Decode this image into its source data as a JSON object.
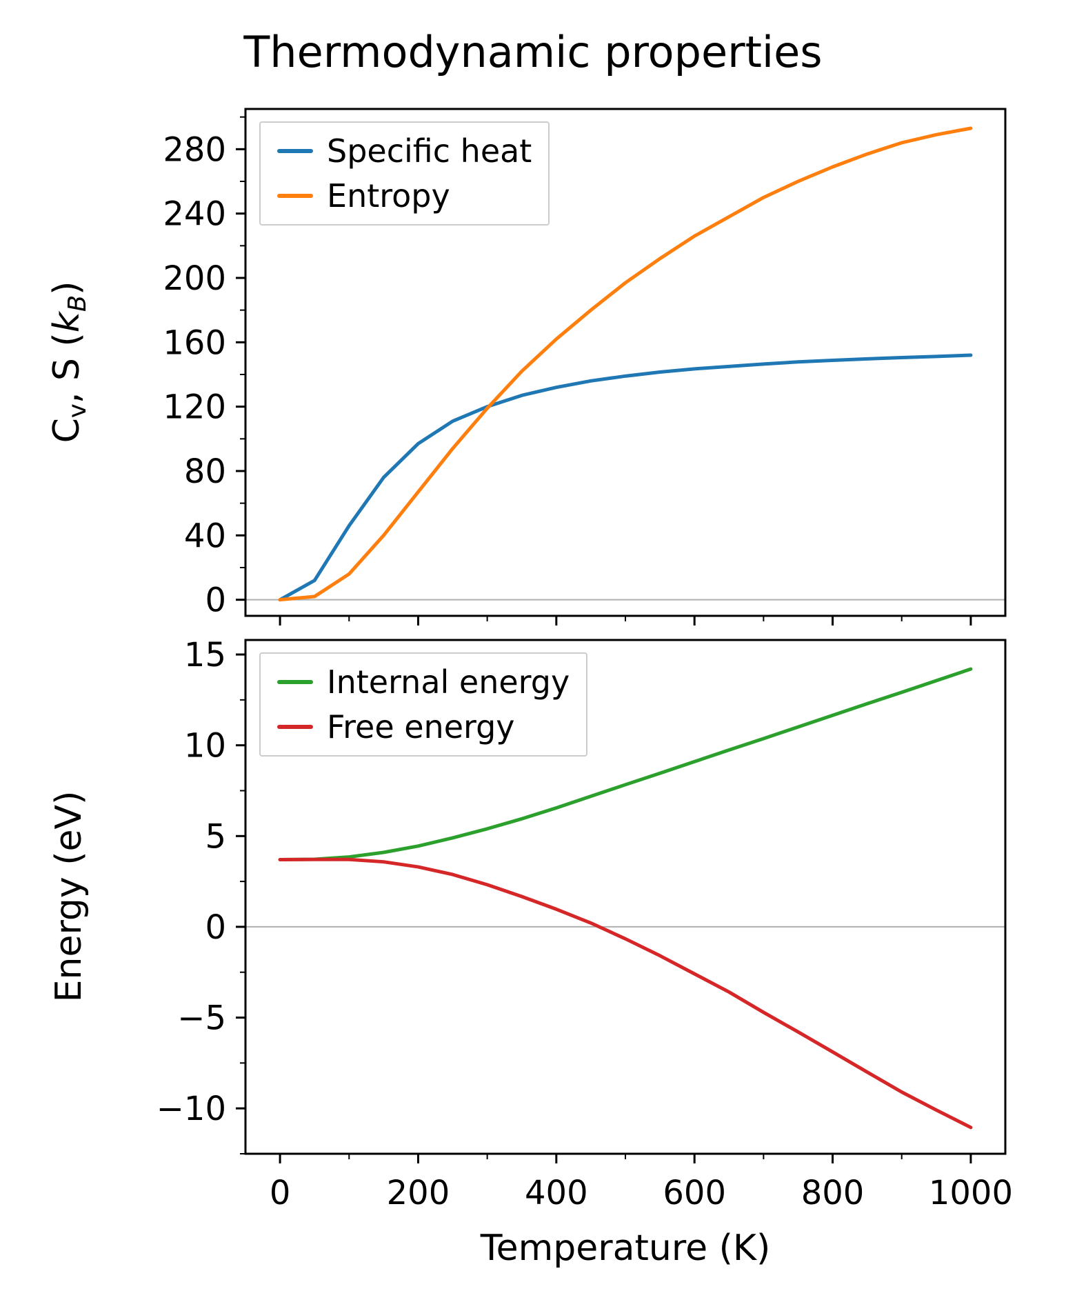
{
  "figure": {
    "title": "Thermodynamic properties",
    "xlabel": "Temperature (K)"
  },
  "colors": {
    "specific_heat": "#1f77b4",
    "entropy": "#ff7f0e",
    "internal_energy": "#2ca02c",
    "free_energy": "#d62728",
    "zero_line": "#b0b0b0",
    "spine": "#000000"
  },
  "top_ylabel_segments": [
    {
      "t": "C"
    },
    {
      "t": "v",
      "sub": true
    },
    {
      "t": ", S ("
    },
    {
      "t": "k",
      "italic": true
    },
    {
      "t": "B",
      "sub": true,
      "italic": true
    },
    {
      "t": ")"
    }
  ],
  "chart_data": [
    {
      "type": "line",
      "title": "Thermodynamic properties",
      "xlabel": "Temperature (K)",
      "ylabel": "Cv, S (kB)",
      "x": [
        0,
        50,
        100,
        150,
        200,
        250,
        300,
        350,
        400,
        450,
        500,
        550,
        600,
        650,
        700,
        750,
        800,
        850,
        900,
        950,
        1000
      ],
      "series": [
        {
          "name": "Specific heat",
          "color": "#1f77b4",
          "values": [
            0,
            12,
            46,
            76,
            97,
            111,
            120,
            127,
            132,
            136,
            139,
            141.5,
            143.5,
            145,
            146.5,
            147.8,
            148.8,
            149.7,
            150.5,
            151.2,
            152
          ]
        },
        {
          "name": "Entropy",
          "color": "#ff7f0e",
          "values": [
            0,
            2,
            16,
            40,
            67,
            94,
            119,
            142,
            162,
            180,
            197,
            212,
            226,
            238,
            250,
            260,
            269,
            277,
            284,
            289,
            293
          ]
        }
      ],
      "xlim": [
        -50,
        1050
      ],
      "ylim": [
        -10,
        305
      ],
      "xticks": [
        0,
        200,
        400,
        600,
        800,
        1000
      ],
      "yticks": [
        0,
        40,
        80,
        120,
        160,
        200,
        240,
        280
      ],
      "x_minor": 100,
      "y_minor": 20,
      "grid": false,
      "legend_position": "upper left",
      "zero_line": true,
      "show_x_labels": false
    },
    {
      "type": "line",
      "title": "",
      "xlabel": "Temperature (K)",
      "ylabel": "Energy (eV)",
      "x": [
        0,
        50,
        100,
        150,
        200,
        250,
        300,
        350,
        400,
        450,
        500,
        550,
        600,
        650,
        700,
        750,
        800,
        850,
        900,
        950,
        1000
      ],
      "series": [
        {
          "name": "Internal energy",
          "color": "#2ca02c",
          "values": [
            3.7,
            3.72,
            3.85,
            4.1,
            4.45,
            4.9,
            5.4,
            5.95,
            6.55,
            7.19,
            7.83,
            8.46,
            9.1,
            9.74,
            10.37,
            11.01,
            11.65,
            12.29,
            12.92,
            13.56,
            14.2
          ]
        },
        {
          "name": "Free energy",
          "color": "#d62728",
          "values": [
            3.7,
            3.71,
            3.71,
            3.58,
            3.3,
            2.88,
            2.32,
            1.67,
            0.97,
            0.21,
            -0.66,
            -1.59,
            -2.59,
            -3.59,
            -4.71,
            -5.79,
            -6.89,
            -8.0,
            -9.1,
            -10.09,
            -11.05
          ]
        }
      ],
      "xlim": [
        -50,
        1050
      ],
      "ylim": [
        -12.5,
        15.8
      ],
      "xticks": [
        0,
        200,
        400,
        600,
        800,
        1000
      ],
      "yticks": [
        -10,
        -5,
        0,
        5,
        10,
        15
      ],
      "x_minor": 100,
      "y_minor": 2.5,
      "grid": false,
      "legend_position": "upper left",
      "zero_line": true,
      "show_x_labels": true
    }
  ]
}
